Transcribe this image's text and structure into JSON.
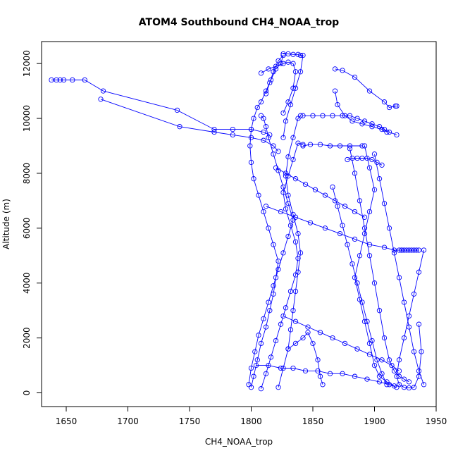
{
  "chart_data": {
    "type": "scatter",
    "title": "ATOM4 Southbound CH4_NOAA_trop",
    "xlabel": "CH4_NOAA_trop",
    "ylabel": "Altitude (m)",
    "xlim": [
      1630,
      1950
    ],
    "ylim": [
      -500,
      12800
    ],
    "x_ticks": [
      1650,
      1700,
      1750,
      1800,
      1850,
      1900,
      1950
    ],
    "y_ticks": [
      0,
      2000,
      4000,
      6000,
      8000,
      10000,
      12000
    ],
    "marker": "open-circle",
    "connected": true,
    "grid": false,
    "legend": "none",
    "series_color": "#0000FF",
    "series": [
      {
        "x": [
          1638,
          1642,
          1645,
          1648,
          1655,
          1665,
          1680,
          1740,
          1770,
          1785,
          1800,
          1810,
          1815
        ],
        "y": [
          11400,
          11400,
          11400,
          11400,
          11400,
          11400,
          11000,
          10300,
          9600,
          9600,
          9600,
          9500,
          9400
        ]
      },
      {
        "x": [
          1678,
          1742,
          1770,
          1785,
          1800,
          1810,
          1818,
          1822
        ],
        "y": [
          10700,
          9700,
          9500,
          9400,
          9300,
          9200,
          9000,
          8800
        ]
      },
      {
        "x": [
          1800,
          1802,
          1805,
          1808,
          1812,
          1815,
          1818,
          1820,
          1822,
          1818,
          1814,
          1810,
          1806,
          1802,
          1800,
          1799,
          1800,
          1802,
          1805,
          1808,
          1812,
          1816,
          1820,
          1824,
          1826,
          1822,
          1818,
          1815,
          1812
        ],
        "y": [
          200,
          600,
          1200,
          1800,
          2400,
          3000,
          3600,
          4200,
          4800,
          5400,
          6000,
          6600,
          7200,
          7800,
          8400,
          9000,
          9600,
          10000,
          10400,
          10600,
          11000,
          11400,
          11800,
          12000,
          12300,
          12100,
          11700,
          11300,
          10900
        ]
      },
      {
        "x": [
          1798,
          1800,
          1803,
          1806,
          1810,
          1814,
          1818,
          1822,
          1826,
          1830,
          1834,
          1830,
          1826,
          1822,
          1818,
          1814,
          1812,
          1810,
          1808
        ],
        "y": [
          300,
          900,
          1500,
          2100,
          2700,
          3300,
          3900,
          4500,
          5100,
          5700,
          6300,
          6900,
          7500,
          8100,
          8700,
          9300,
          9700,
          10000,
          10100
        ]
      },
      {
        "x": [
          1808,
          1812,
          1816,
          1820,
          1824,
          1828,
          1832,
          1836,
          1838,
          1836,
          1832,
          1828,
          1826,
          1830,
          1834,
          1838,
          1842
        ],
        "y": [
          150,
          700,
          1300,
          1900,
          2500,
          3100,
          3700,
          4300,
          4900,
          5500,
          6100,
          6700,
          7300,
          7900,
          8500,
          9100,
          9050
        ]
      },
      {
        "x": [
          1822,
          1826,
          1830,
          1832,
          1834,
          1836,
          1838,
          1840,
          1838,
          1834,
          1830,
          1828,
          1830,
          1834,
          1838,
          1840
        ],
        "y": [
          200,
          900,
          1600,
          2300,
          3000,
          3700,
          4400,
          5100,
          5800,
          6500,
          7200,
          7900,
          8600,
          9300,
          10000,
          10100
        ]
      },
      {
        "x": [
          1826,
          1830,
          1834,
          1838,
          1840,
          1842,
          1840,
          1836,
          1832,
          1828,
          1826
        ],
        "y": [
          12350,
          12350,
          12330,
          12330,
          12300,
          12300,
          11700,
          11100,
          10500,
          9900,
          9300
        ]
      },
      {
        "x": [
          1808,
          1814,
          1820,
          1826,
          1830,
          1834,
          1836,
          1834,
          1830,
          1826
        ],
        "y": [
          11650,
          11800,
          11900,
          12000,
          12050,
          12000,
          11700,
          11100,
          10600,
          10200
        ]
      },
      {
        "x": [
          1940,
          1936,
          1932,
          1928,
          1924,
          1920,
          1918,
          1920,
          1924,
          1928,
          1932,
          1936,
          1938,
          1936
        ],
        "y": [
          5200,
          4400,
          3600,
          2800,
          2000,
          1200,
          600,
          300,
          200,
          180,
          200,
          600,
          1500,
          2500
        ]
      },
      {
        "x": [
          1868,
          1874,
          1884,
          1896,
          1908,
          1912,
          1917,
          1918
        ],
        "y": [
          11800,
          11750,
          11500,
          11000,
          10600,
          10400,
          10450,
          10450
        ]
      },
      {
        "x": [
          1868,
          1870,
          1876,
          1882,
          1890,
          1898,
          1906,
          1912,
          1918
        ],
        "y": [
          11000,
          10500,
          10100,
          9900,
          9800,
          9700,
          9600,
          9500,
          9400
        ]
      },
      {
        "x": [
          1842,
          1850,
          1858,
          1866,
          1874,
          1880,
          1886,
          1892,
          1898,
          1904,
          1908,
          1910
        ],
        "y": [
          10100,
          10100,
          10100,
          10100,
          10100,
          10100,
          10000,
          9900,
          9800,
          9700,
          9600,
          9500
        ]
      },
      {
        "x": [
          1878,
          1882,
          1886,
          1890,
          1894,
          1898,
          1902,
          1906
        ],
        "y": [
          8500,
          8550,
          8550,
          8550,
          8550,
          8500,
          8400,
          8300
        ]
      },
      {
        "x": [
          1920,
          1922,
          1924,
          1926,
          1928,
          1930,
          1932,
          1934,
          1936
        ],
        "y": [
          5200,
          5200,
          5200,
          5200,
          5200,
          5200,
          5200,
          5200,
          5200
        ]
      },
      {
        "x": [
          1880,
          1884,
          1888,
          1892,
          1896,
          1900,
          1904,
          1908,
          1912,
          1916,
          1920,
          1924,
          1928
        ],
        "y": [
          8900,
          8000,
          7000,
          6000,
          5000,
          4000,
          3000,
          2000,
          1200,
          800,
          600,
          500,
          400
        ]
      },
      {
        "x": [
          1900,
          1904,
          1908,
          1912,
          1916,
          1920,
          1924,
          1928,
          1932,
          1936,
          1940
        ],
        "y": [
          8700,
          7800,
          6900,
          6000,
          5100,
          4200,
          3300,
          2400,
          1500,
          800,
          300
        ]
      },
      {
        "x": [
          1866,
          1870,
          1874,
          1878,
          1882,
          1886,
          1890,
          1894,
          1898,
          1902,
          1906,
          1910
        ],
        "y": [
          7500,
          6800,
          6100,
          5400,
          4700,
          4000,
          3300,
          2600,
          1900,
          1200,
          700,
          300
        ]
      },
      {
        "x": [
          1892,
          1896,
          1900,
          1896,
          1892,
          1888,
          1884,
          1888,
          1892,
          1896,
          1900,
          1904,
          1910,
          1916
        ],
        "y": [
          9000,
          8200,
          7400,
          6600,
          5800,
          5000,
          4200,
          3400,
          2600,
          1800,
          1000,
          600,
          400,
          250
        ]
      },
      {
        "x": [
          1830,
          1836,
          1842,
          1846,
          1850,
          1854,
          1856,
          1858
        ],
        "y": [
          1600,
          1800,
          2000,
          2200,
          1800,
          1200,
          600,
          300
        ]
      },
      {
        "x": [
          1820,
          1828,
          1836,
          1844,
          1852,
          1860,
          1868,
          1876,
          1884,
          1892
        ],
        "y": [
          8200,
          8000,
          7800,
          7600,
          7400,
          7200,
          7000,
          6800,
          6600,
          6400
        ]
      },
      {
        "x": [
          1812,
          1824,
          1836,
          1848,
          1860,
          1872,
          1884,
          1896,
          1908,
          1916,
          1922
        ],
        "y": [
          6800,
          6600,
          6400,
          6200,
          6000,
          5800,
          5600,
          5400,
          5300,
          5200,
          5200
        ]
      },
      {
        "x": [
          1826,
          1836,
          1846,
          1856,
          1866,
          1876,
          1886,
          1896,
          1906,
          1914,
          1920
        ],
        "y": [
          2800,
          2600,
          2400,
          2200,
          2000,
          1800,
          1600,
          1400,
          1200,
          1000,
          800
        ]
      },
      {
        "x": [
          1804,
          1814,
          1824,
          1834,
          1844,
          1854,
          1864,
          1874,
          1884,
          1894,
          1904,
          1912,
          1918
        ],
        "y": [
          1000,
          1000,
          900,
          900,
          800,
          800,
          700,
          700,
          600,
          500,
          400,
          300,
          200
        ]
      },
      {
        "x": [
          1842,
          1848,
          1856,
          1864,
          1872,
          1880,
          1890
        ],
        "y": [
          9000,
          9050,
          9050,
          9000,
          9000,
          9000,
          9000
        ]
      }
    ]
  }
}
